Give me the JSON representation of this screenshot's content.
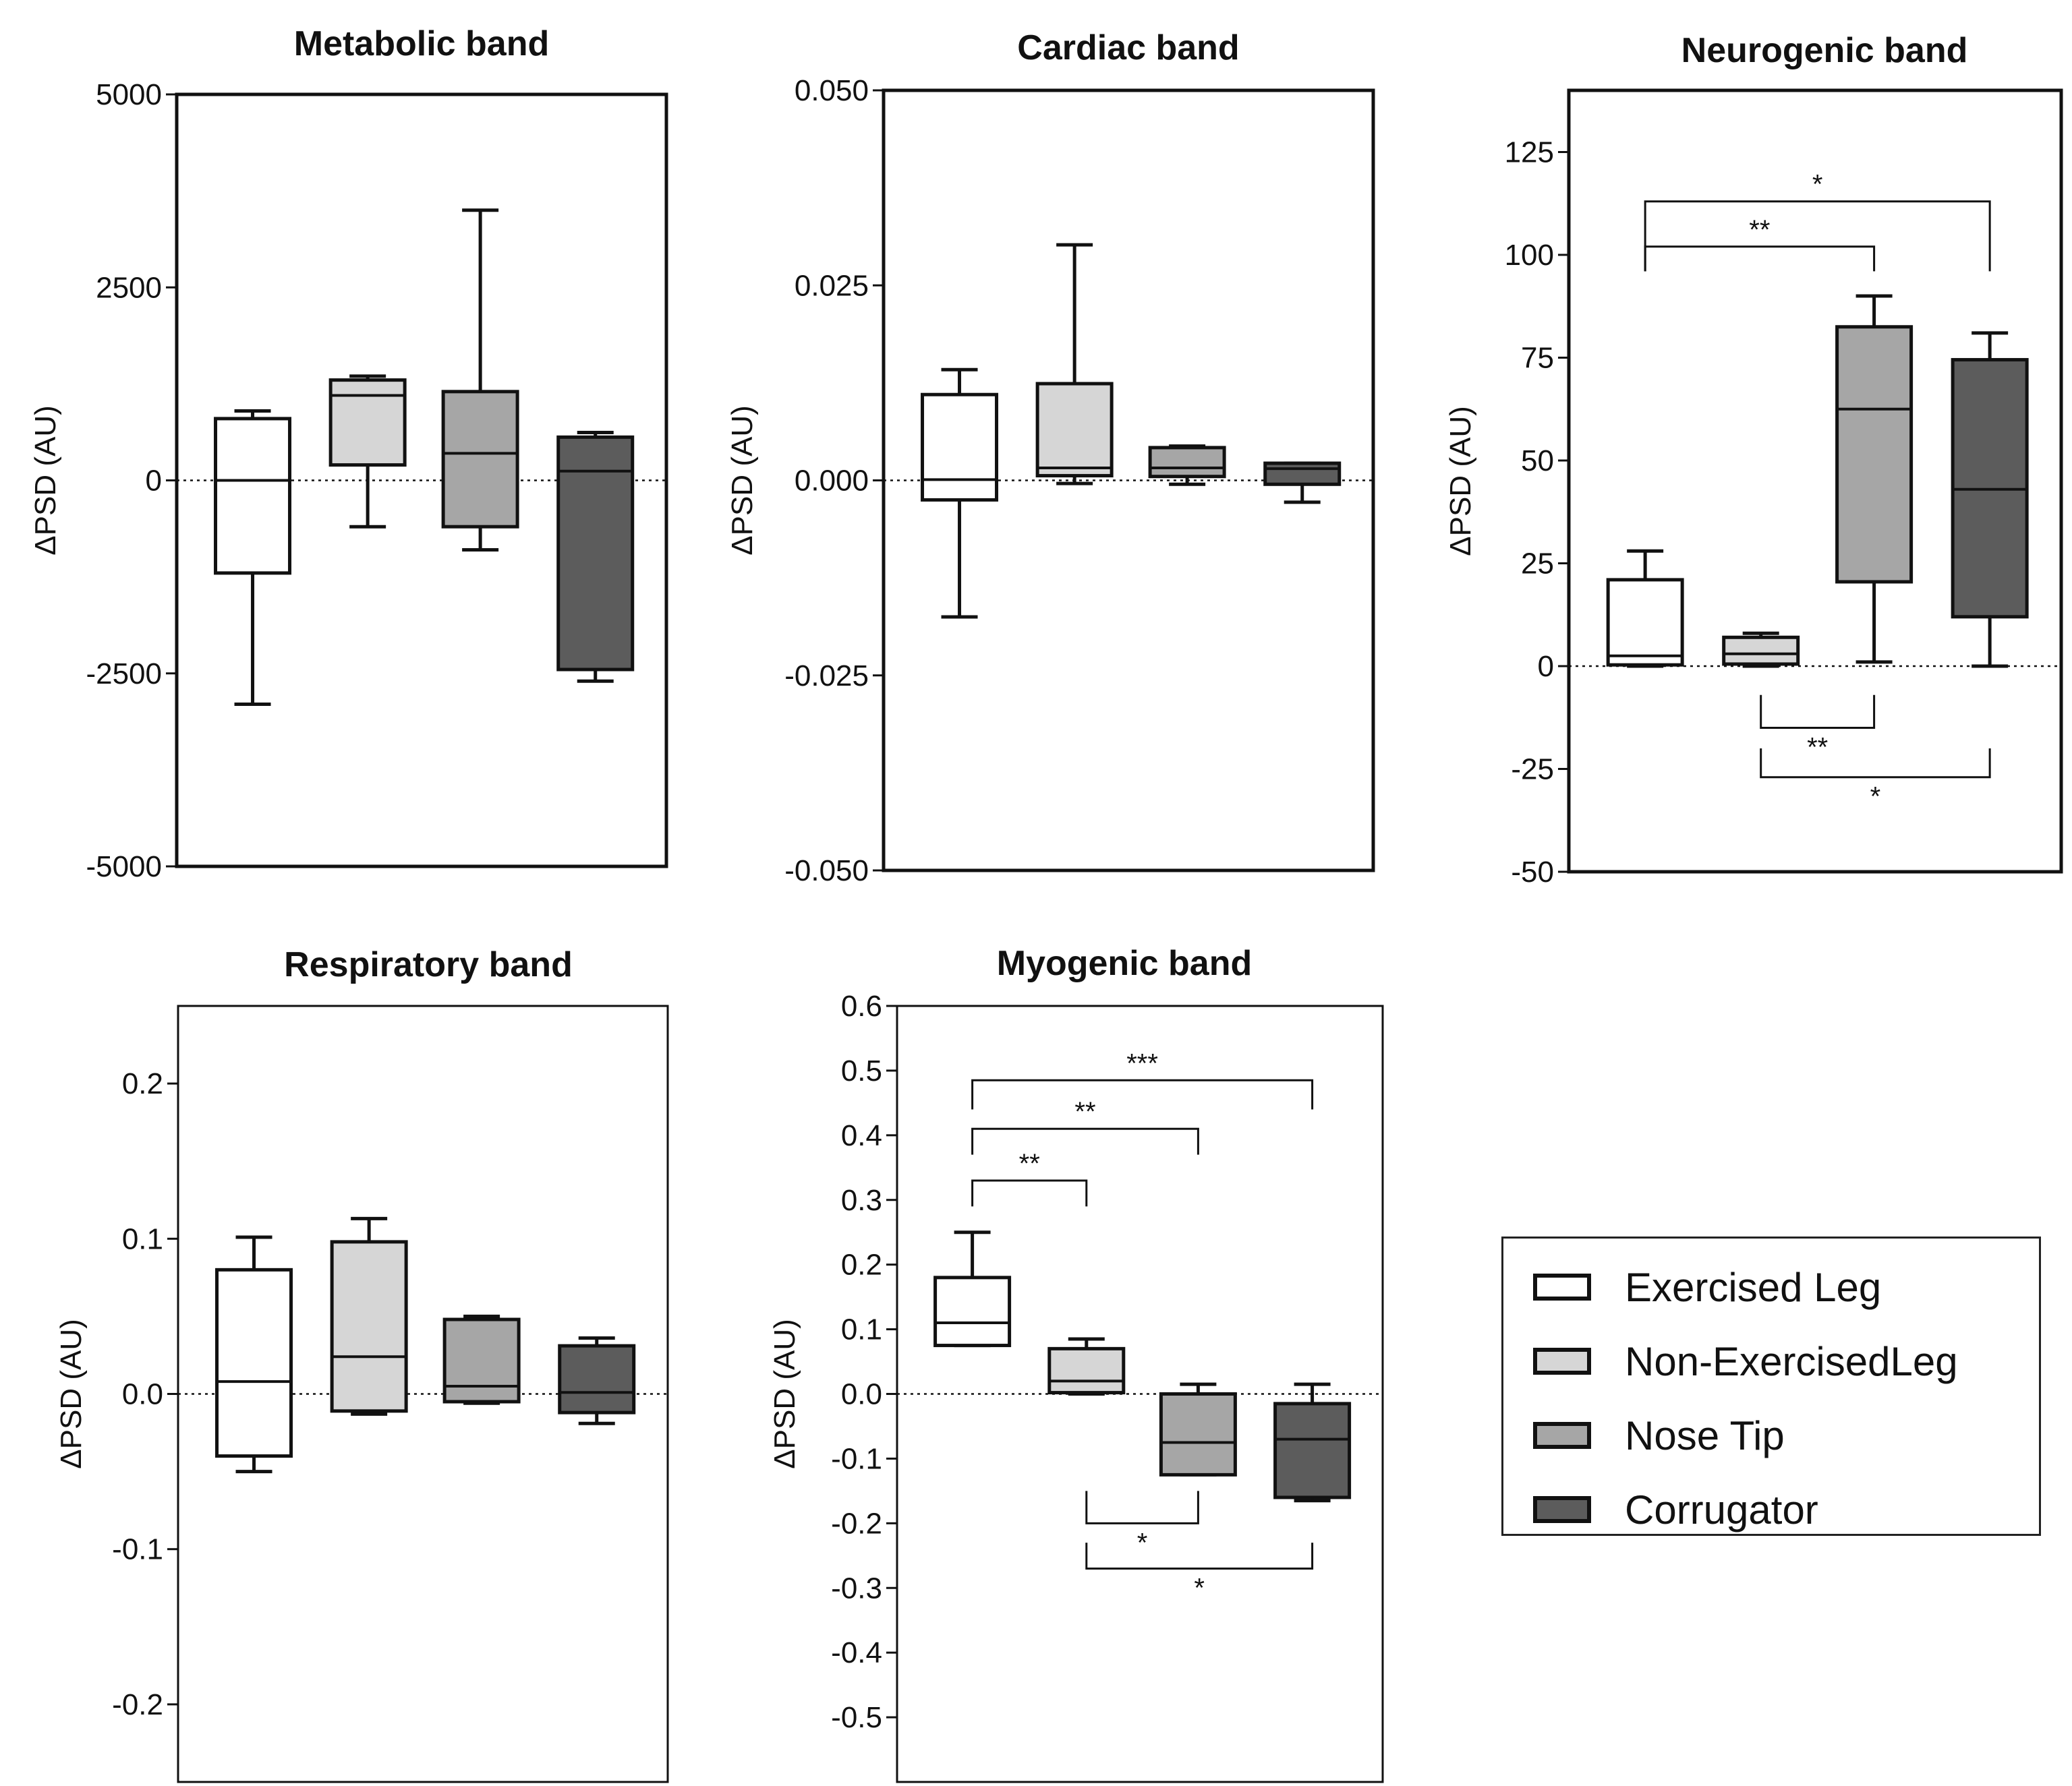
{
  "chart_data": [
    {
      "type": "box",
      "title": "Metabolic band",
      "ylabel": "ΔPSD (AU)",
      "ylim": [
        -5000,
        5000
      ],
      "yticks": [
        -5000,
        -2500,
        0,
        2500,
        5000
      ],
      "ytick_labels": [
        "-5000",
        "-2500",
        "0",
        "2500",
        "5000"
      ],
      "categories": [
        "Exercised Leg",
        "Non-Exercised Leg",
        "Nose Tip",
        "Corrugator"
      ],
      "boxes": [
        {
          "min": -2900,
          "q1": -1200,
          "median": 0,
          "q3": 800,
          "max": 900
        },
        {
          "min": -600,
          "q1": 200,
          "median": 1100,
          "q3": 1300,
          "max": 1350
        },
        {
          "min": -900,
          "q1": -600,
          "median": 350,
          "q3": 1150,
          "max": 3500
        },
        {
          "min": -2600,
          "q1": -2450,
          "median": 120,
          "q3": 560,
          "max": 620
        }
      ],
      "significance": []
    },
    {
      "type": "box",
      "title": "Cardiac band",
      "ylabel": "ΔPSD (AU)",
      "ylim": [
        -0.05,
        0.05
      ],
      "yticks": [
        -0.05,
        -0.025,
        0,
        0.025,
        0.05
      ],
      "ytick_labels": [
        "-0.050",
        "-0.025",
        "0.000",
        "0.025",
        "0.050"
      ],
      "categories": [
        "Exercised Leg",
        "Non-Exercised Leg",
        "Nose Tip",
        "Corrugator"
      ],
      "boxes": [
        {
          "min": -0.0175,
          "q1": -0.0025,
          "median": 0.0001,
          "q3": 0.011,
          "max": 0.0142
        },
        {
          "min": -0.0004,
          "q1": 0.0006,
          "median": 0.0016,
          "q3": 0.0124,
          "max": 0.0302
        },
        {
          "min": -0.0005,
          "q1": 0.0005,
          "median": 0.0016,
          "q3": 0.0042,
          "max": 0.0044
        },
        {
          "min": -0.0028,
          "q1": -0.0005,
          "median": 0.0015,
          "q3": 0.0022,
          "max": 0.0022
        }
      ],
      "significance": []
    },
    {
      "type": "box",
      "title": "Neurogenic band",
      "ylabel": "ΔPSD (AU)",
      "ylim": [
        -50,
        140
      ],
      "yticks": [
        -50,
        -25,
        0,
        25,
        50,
        75,
        100,
        125
      ],
      "ytick_labels": [
        "-50",
        "-25",
        "0",
        "25",
        "50",
        "75",
        "100",
        "125"
      ],
      "categories": [
        "Exercised Leg",
        "Non-Exercised Leg",
        "Nose Tip",
        "Corrugator"
      ],
      "boxes": [
        {
          "min": 0,
          "q1": 0.3,
          "median": 2.5,
          "q3": 21,
          "max": 28
        },
        {
          "min": 0,
          "q1": 0.5,
          "median": 3,
          "q3": 7,
          "max": 8
        },
        {
          "min": 1,
          "q1": 20.5,
          "median": 62.5,
          "q3": 82.5,
          "max": 90
        },
        {
          "min": 0,
          "q1": 12,
          "median": 43,
          "q3": 74.5,
          "max": 81
        }
      ],
      "significance": [
        {
          "from": 0,
          "to": 3,
          "label": "*",
          "side": "above",
          "y": 113,
          "leg": 96
        },
        {
          "from": 0,
          "to": 2,
          "label": "**",
          "side": "above",
          "y": 102,
          "leg": 96
        },
        {
          "from": 1,
          "to": 2,
          "label": "**",
          "side": "below",
          "y": -15,
          "leg": -7
        },
        {
          "from": 1,
          "to": 3,
          "label": "*",
          "side": "below",
          "y": -27,
          "leg": -20
        }
      ]
    },
    {
      "type": "box",
      "title": "Respiratory band",
      "ylabel": "ΔPSD (AU)",
      "ylim": [
        -0.25,
        0.25
      ],
      "yticks": [
        -0.2,
        -0.1,
        0,
        0.1,
        0.2
      ],
      "ytick_labels": [
        "-0.2",
        "-0.1",
        "0.0",
        "0.1",
        "0.2"
      ],
      "categories": [
        "Exercised Leg",
        "Non-Exercised Leg",
        "Nose Tip",
        "Corrugator"
      ],
      "boxes": [
        {
          "min": -0.05,
          "q1": -0.04,
          "median": 0.008,
          "q3": 0.08,
          "max": 0.101
        },
        {
          "min": -0.013,
          "q1": -0.011,
          "median": 0.024,
          "q3": 0.098,
          "max": 0.113
        },
        {
          "min": -0.006,
          "q1": -0.005,
          "median": 0.005,
          "q3": 0.048,
          "max": 0.05
        },
        {
          "min": -0.019,
          "q1": -0.012,
          "median": 0.001,
          "q3": 0.031,
          "max": 0.036
        }
      ],
      "significance": []
    },
    {
      "type": "box",
      "title": "Myogenic band",
      "ylabel": "ΔPSD (AU)",
      "ylim": [
        -0.6,
        0.6
      ],
      "yticks": [
        -0.5,
        -0.4,
        -0.3,
        -0.2,
        -0.1,
        0,
        0.1,
        0.2,
        0.3,
        0.4,
        0.5,
        0.6
      ],
      "ytick_labels": [
        "-0.5",
        "-0.4",
        "-0.3",
        "-0.2",
        "-0.1",
        "0.0",
        "0.1",
        "0.2",
        "0.3",
        "0.4",
        "0.5",
        "0.6"
      ],
      "categories": [
        "Exercised Leg",
        "Non-Exercised Leg",
        "Nose Tip",
        "Corrugator"
      ],
      "boxes": [
        {
          "min": 0.075,
          "q1": 0.075,
          "median": 0.11,
          "q3": 0.18,
          "max": 0.25
        },
        {
          "min": 0,
          "q1": 0.002,
          "median": 0.02,
          "q3": 0.07,
          "max": 0.085
        },
        {
          "min": -0.125,
          "q1": -0.125,
          "median": -0.075,
          "q3": 0,
          "max": 0.015
        },
        {
          "min": -0.165,
          "q1": -0.16,
          "median": -0.07,
          "q3": -0.015,
          "max": 0.015
        }
      ],
      "significance": [
        {
          "from": 0,
          "to": 3,
          "label": "***",
          "side": "above",
          "y": 0.485,
          "leg": 0.44
        },
        {
          "from": 0,
          "to": 2,
          "label": "**",
          "side": "above",
          "y": 0.41,
          "leg": 0.37
        },
        {
          "from": 0,
          "to": 1,
          "label": "**",
          "side": "above",
          "y": 0.33,
          "leg": 0.29
        },
        {
          "from": 1,
          "to": 2,
          "label": "*",
          "side": "below",
          "y": -0.2,
          "leg": -0.15
        },
        {
          "from": 1,
          "to": 3,
          "label": "*",
          "side": "below",
          "y": -0.27,
          "leg": -0.23
        }
      ]
    }
  ],
  "legend": {
    "items": [
      {
        "label": "Exercised Leg",
        "color": "#ffffff"
      },
      {
        "label": "Non-ExercisedLeg",
        "color": "#d6d6d6"
      },
      {
        "label": "Nose Tip",
        "color": "#a6a6a6"
      },
      {
        "label": "Corrugator",
        "color": "#5c5c5c"
      }
    ]
  }
}
